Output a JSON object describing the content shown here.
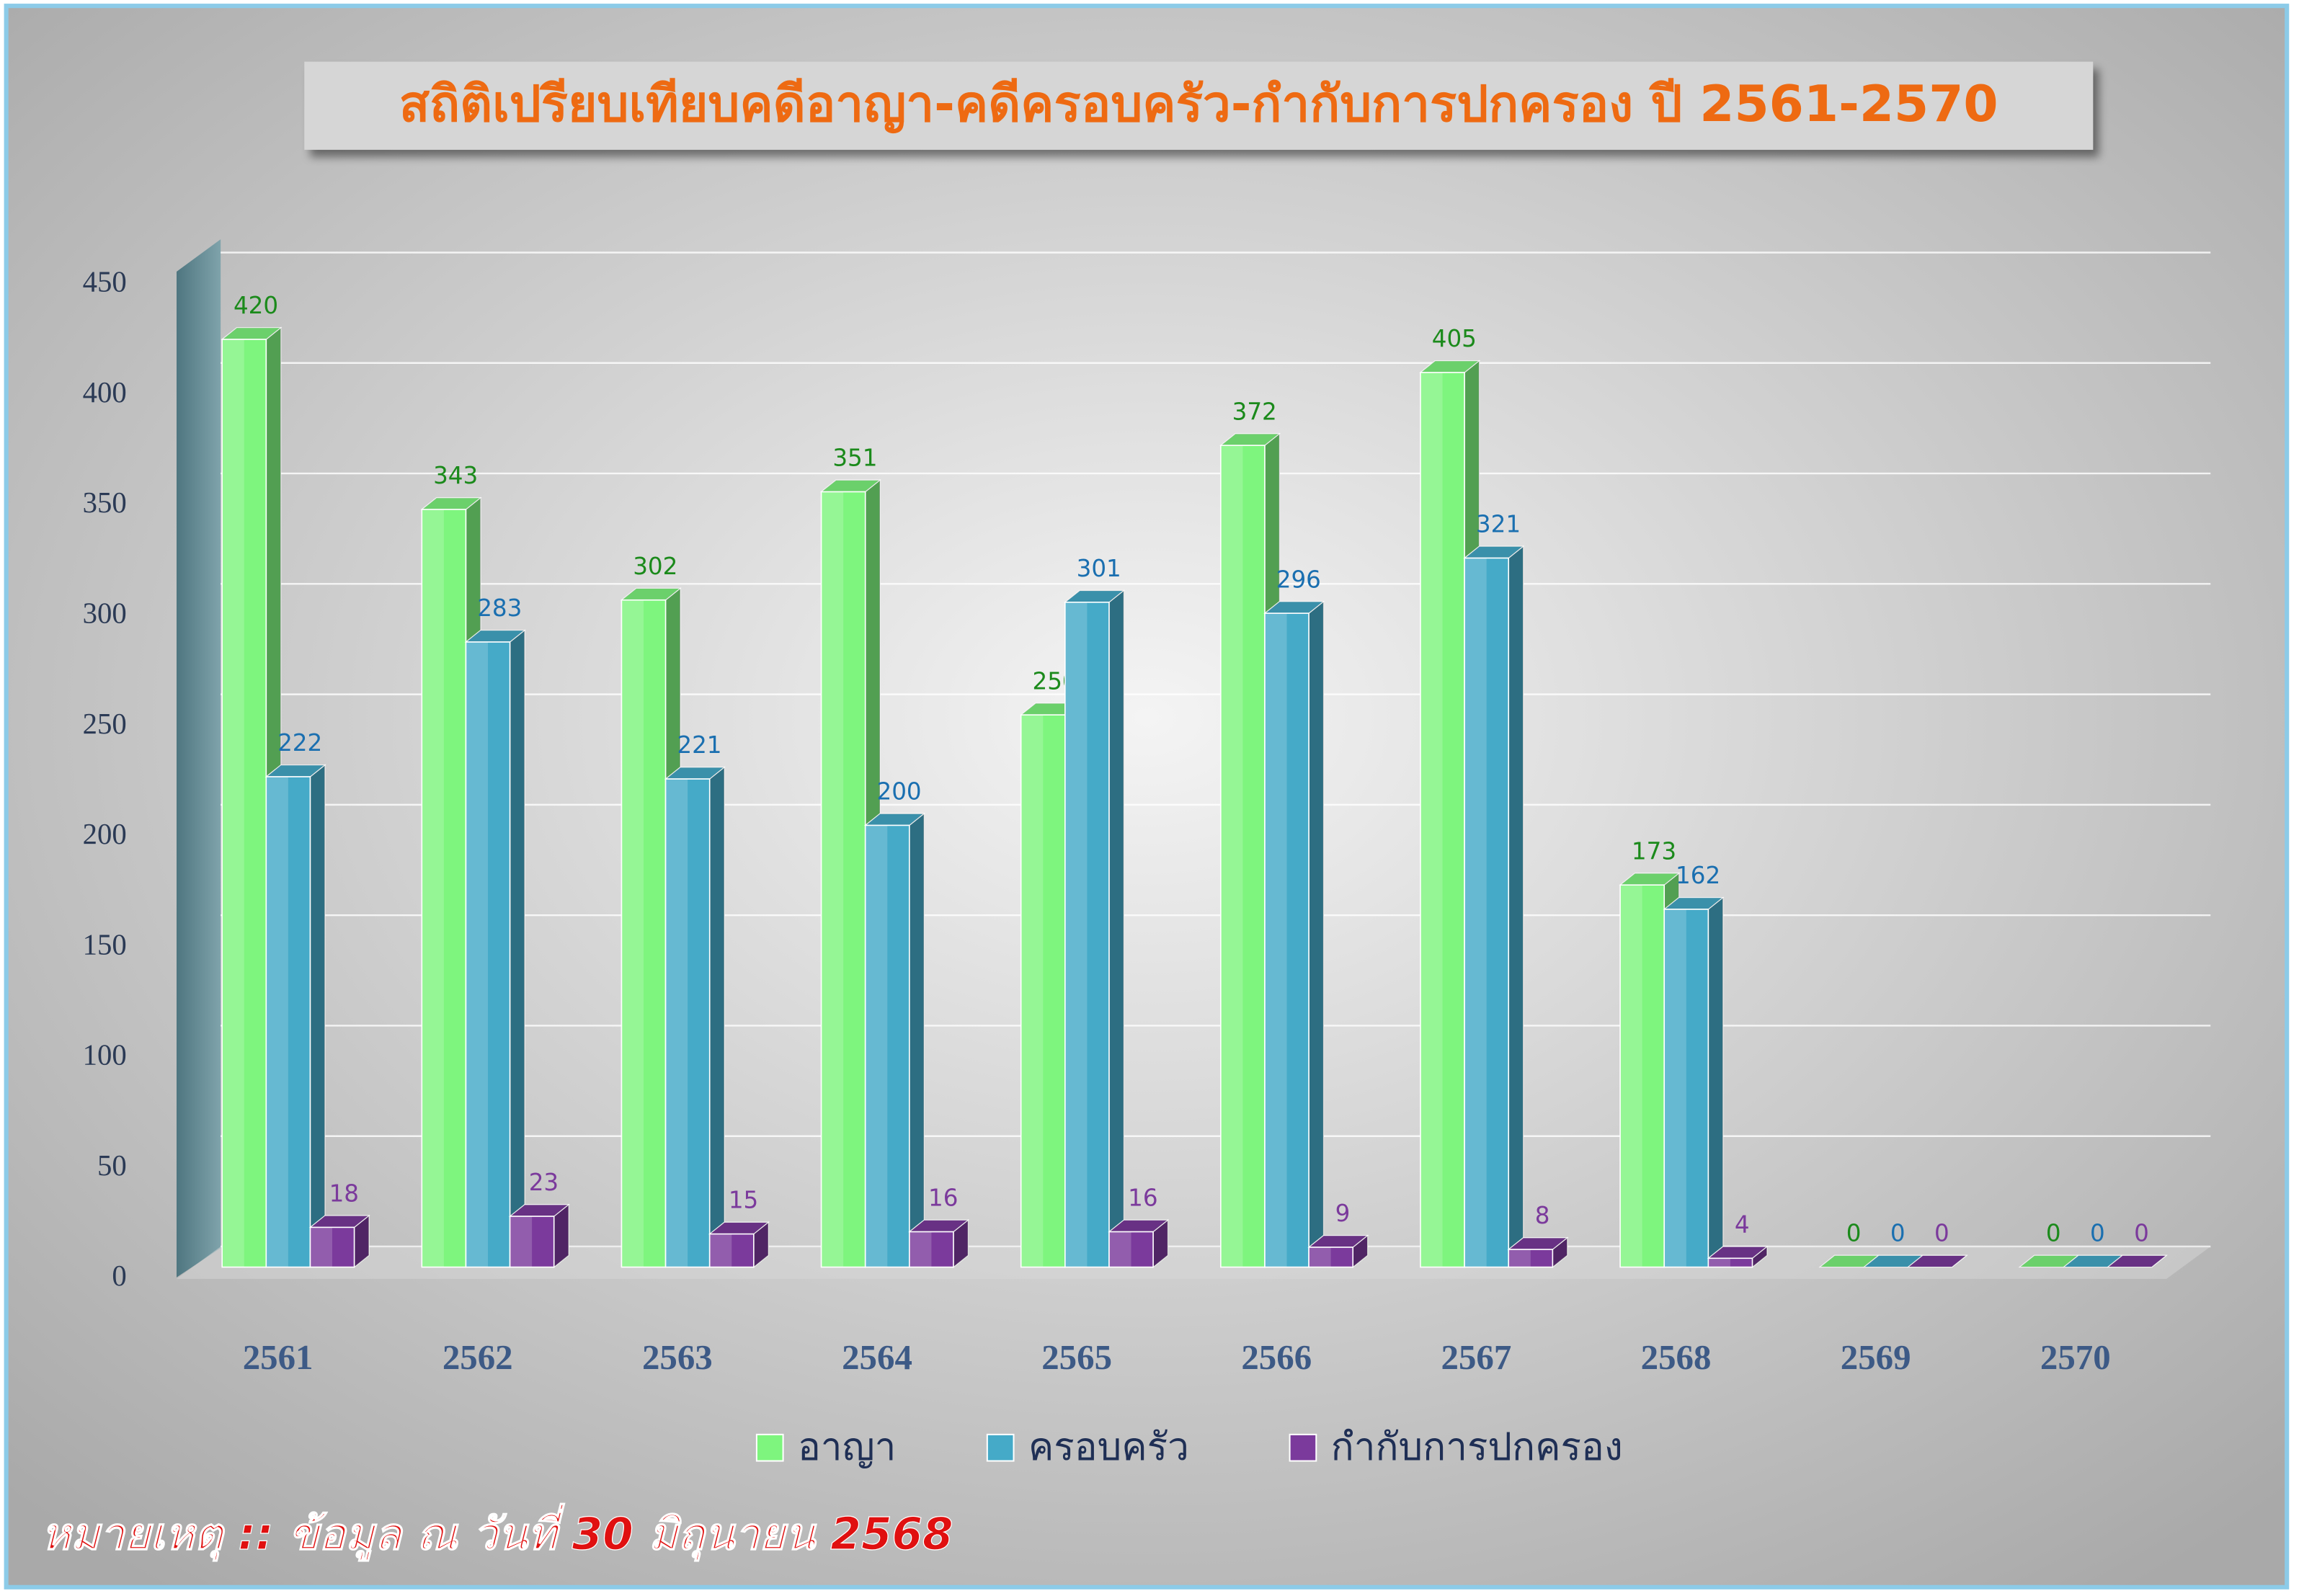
{
  "chart_data": {
    "type": "bar3d",
    "title": "สถิติเปรียบเทียบคดีอาญา-คดีครอบครัว-กำกับการปกครอง ปี 2561-2570",
    "note": "หมายเหตุ :: ข้อมูล ณ วันที่ 30 มิถุนายน 2568",
    "categories": [
      "2561",
      "2562",
      "2563",
      "2564",
      "2565",
      "2566",
      "2567",
      "2568",
      "2569",
      "2570"
    ],
    "series": [
      {
        "name": "อาญา",
        "color": "#7ef57e",
        "label_color": "#1b8a1b",
        "values": [
          420,
          343,
          302,
          351,
          250,
          372,
          405,
          173,
          0,
          0
        ]
      },
      {
        "name": "ครอบครัว",
        "color": "#45aac8",
        "label_color": "#1a6fb0",
        "values": [
          222,
          283,
          221,
          200,
          301,
          296,
          321,
          162,
          0,
          0
        ]
      },
      {
        "name": "กำกับการปกครอง",
        "color": "#7b3a9c",
        "label_color": "#7b3a9c",
        "values": [
          18,
          23,
          15,
          16,
          16,
          9,
          8,
          4,
          0,
          0
        ]
      }
    ],
    "ylim": [
      0,
      450
    ],
    "yticks": [
      0,
      50,
      100,
      150,
      200,
      250,
      300,
      350,
      400,
      450
    ],
    "grid": true
  }
}
